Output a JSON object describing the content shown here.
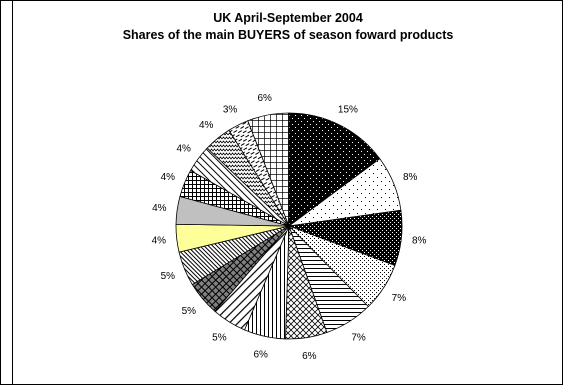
{
  "chart_data": {
    "type": "pie",
    "title": "UK April-September 2004",
    "subtitle": "Shares of the main BUYERS of season foward products",
    "start_angle_deg": 90,
    "direction": "clockwise",
    "label_suffix": "%",
    "slices": [
      {
        "value": 15,
        "pattern": "dots-on-black"
      },
      {
        "value": 8,
        "pattern": "sparse-dots"
      },
      {
        "value": 8,
        "pattern": "dark-checker"
      },
      {
        "value": 7,
        "pattern": "fine-dots"
      },
      {
        "value": 7,
        "pattern": "horizontal-lines"
      },
      {
        "value": 6,
        "pattern": "small-diamonds"
      },
      {
        "value": 6,
        "pattern": "vertical-lines"
      },
      {
        "value": 5,
        "pattern": "diagonal-lines"
      },
      {
        "value": 5,
        "pattern": "gray-diamond-grid"
      },
      {
        "value": 5,
        "pattern": "dense-diagonal"
      },
      {
        "value": 4,
        "color": "#ffff99",
        "pattern": "solid"
      },
      {
        "value": 4,
        "color": "#c0c0c0",
        "pattern": "solid"
      },
      {
        "value": 4,
        "pattern": "crosshatch"
      },
      {
        "value": 4,
        "pattern": "back-diagonal"
      },
      {
        "value": 4,
        "pattern": "zigzag"
      },
      {
        "value": 3,
        "pattern": "dashes"
      },
      {
        "value": 6,
        "pattern": "square-grid"
      }
    ]
  }
}
